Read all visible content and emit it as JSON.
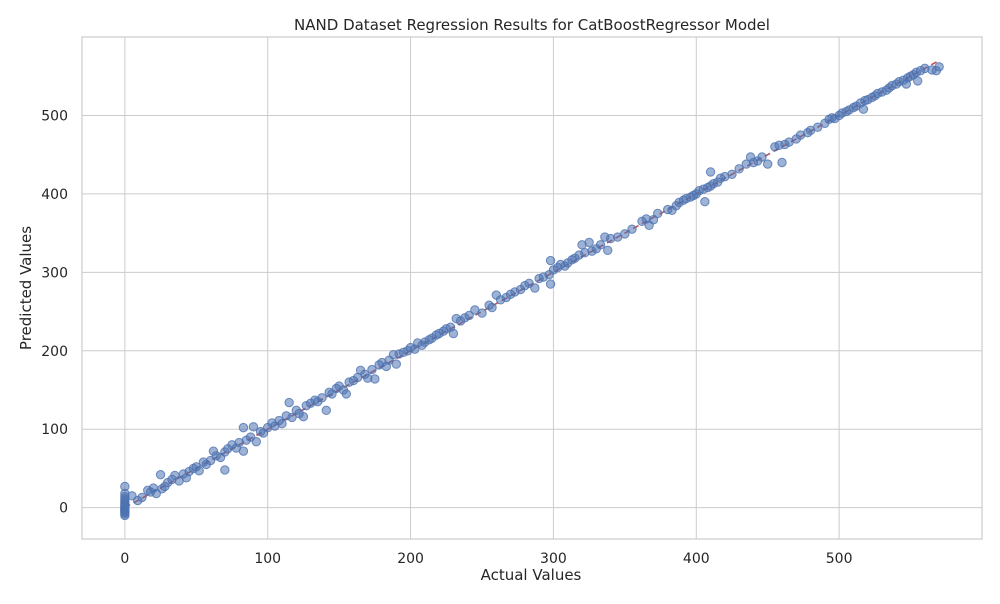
{
  "chart_data": {
    "type": "scatter",
    "title": "NAND Dataset Regression Results for CatBoostRegressor Model",
    "xlabel": "Actual Values",
    "ylabel": "Predicted Values",
    "xlim": [
      -30,
      600
    ],
    "ylim": [
      -40,
      600
    ],
    "xticks": [
      0,
      100,
      200,
      300,
      400,
      500
    ],
    "yticks": [
      0,
      100,
      200,
      300,
      400,
      500
    ],
    "grid": true,
    "legend": "none",
    "colors": {
      "points": "#4c72b0",
      "reference_line": "#c44e52",
      "grid": "#cccccc"
    },
    "reference_line": {
      "from": [
        0,
        0
      ],
      "to": [
        570,
        570
      ],
      "style": "dashed"
    },
    "points": [
      [
        0,
        -10
      ],
      [
        0,
        -8
      ],
      [
        0,
        -6
      ],
      [
        0,
        -5
      ],
      [
        0,
        -3
      ],
      [
        0,
        -2
      ],
      [
        0,
        0
      ],
      [
        0,
        2
      ],
      [
        0,
        4
      ],
      [
        0,
        6
      ],
      [
        0,
        8
      ],
      [
        0,
        11
      ],
      [
        0,
        14
      ],
      [
        0,
        18
      ],
      [
        0,
        27
      ],
      [
        5,
        15
      ],
      [
        9,
        9
      ],
      [
        12,
        13
      ],
      [
        16,
        22
      ],
      [
        18,
        20
      ],
      [
        20,
        25
      ],
      [
        22,
        18
      ],
      [
        25,
        42
      ],
      [
        26,
        24
      ],
      [
        28,
        27
      ],
      [
        30,
        32
      ],
      [
        33,
        36
      ],
      [
        35,
        41
      ],
      [
        38,
        34
      ],
      [
        41,
        43
      ],
      [
        43,
        38
      ],
      [
        45,
        46
      ],
      [
        48,
        50
      ],
      [
        50,
        52
      ],
      [
        52,
        47
      ],
      [
        55,
        58
      ],
      [
        57,
        55
      ],
      [
        60,
        60
      ],
      [
        62,
        72
      ],
      [
        64,
        66
      ],
      [
        67,
        64
      ],
      [
        70,
        71
      ],
      [
        70,
        48
      ],
      [
        72,
        75
      ],
      [
        75,
        80
      ],
      [
        78,
        76
      ],
      [
        80,
        83
      ],
      [
        83,
        102
      ],
      [
        83,
        72
      ],
      [
        85,
        86
      ],
      [
        88,
        90
      ],
      [
        90,
        103
      ],
      [
        92,
        84
      ],
      [
        95,
        97
      ],
      [
        97,
        95
      ],
      [
        100,
        102
      ],
      [
        103,
        108
      ],
      [
        105,
        104
      ],
      [
        108,
        111
      ],
      [
        110,
        107
      ],
      [
        113,
        117
      ],
      [
        115,
        134
      ],
      [
        117,
        115
      ],
      [
        120,
        124
      ],
      [
        122,
        120
      ],
      [
        125,
        116
      ],
      [
        127,
        130
      ],
      [
        130,
        133
      ],
      [
        133,
        137
      ],
      [
        135,
        135
      ],
      [
        138,
        140
      ],
      [
        141,
        124
      ],
      [
        143,
        147
      ],
      [
        145,
        145
      ],
      [
        148,
        152
      ],
      [
        150,
        155
      ],
      [
        153,
        150
      ],
      [
        155,
        145
      ],
      [
        157,
        160
      ],
      [
        160,
        162
      ],
      [
        163,
        166
      ],
      [
        165,
        175
      ],
      [
        168,
        170
      ],
      [
        170,
        165
      ],
      [
        173,
        176
      ],
      [
        175,
        164
      ],
      [
        178,
        182
      ],
      [
        180,
        185
      ],
      [
        183,
        180
      ],
      [
        185,
        188
      ],
      [
        188,
        195
      ],
      [
        190,
        183
      ],
      [
        192,
        196
      ],
      [
        195,
        198
      ],
      [
        198,
        200
      ],
      [
        200,
        204
      ],
      [
        203,
        202
      ],
      [
        205,
        210
      ],
      [
        208,
        207
      ],
      [
        210,
        211
      ],
      [
        213,
        214
      ],
      [
        215,
        216
      ],
      [
        218,
        220
      ],
      [
        220,
        222
      ],
      [
        223,
        225
      ],
      [
        225,
        228
      ],
      [
        228,
        230
      ],
      [
        230,
        222
      ],
      [
        232,
        241
      ],
      [
        235,
        238
      ],
      [
        238,
        242
      ],
      [
        241,
        245
      ],
      [
        245,
        252
      ],
      [
        250,
        248
      ],
      [
        255,
        258
      ],
      [
        257,
        255
      ],
      [
        260,
        271
      ],
      [
        263,
        265
      ],
      [
        267,
        268
      ],
      [
        270,
        272
      ],
      [
        273,
        275
      ],
      [
        277,
        278
      ],
      [
        280,
        283
      ],
      [
        283,
        286
      ],
      [
        287,
        280
      ],
      [
        290,
        292
      ],
      [
        293,
        294
      ],
      [
        297,
        297
      ],
      [
        298,
        315
      ],
      [
        298,
        285
      ],
      [
        300,
        303
      ],
      [
        303,
        306
      ],
      [
        305,
        310
      ],
      [
        308,
        308
      ],
      [
        310,
        312
      ],
      [
        313,
        316
      ],
      [
        315,
        318
      ],
      [
        318,
        322
      ],
      [
        320,
        335
      ],
      [
        322,
        325
      ],
      [
        325,
        338
      ],
      [
        327,
        327
      ],
      [
        330,
        330
      ],
      [
        333,
        335
      ],
      [
        336,
        345
      ],
      [
        338,
        328
      ],
      [
        340,
        343
      ],
      [
        345,
        345
      ],
      [
        350,
        349
      ],
      [
        355,
        355
      ],
      [
        362,
        365
      ],
      [
        365,
        368
      ],
      [
        367,
        360
      ],
      [
        370,
        367
      ],
      [
        373,
        375
      ],
      [
        380,
        380
      ],
      [
        383,
        379
      ],
      [
        386,
        385
      ],
      [
        388,
        389
      ],
      [
        391,
        392
      ],
      [
        393,
        394
      ],
      [
        396,
        396
      ],
      [
        398,
        398
      ],
      [
        400,
        400
      ],
      [
        402,
        404
      ],
      [
        405,
        406
      ],
      [
        406,
        390
      ],
      [
        408,
        408
      ],
      [
        410,
        410
      ],
      [
        410,
        428
      ],
      [
        412,
        413
      ],
      [
        415,
        415
      ],
      [
        417,
        420
      ],
      [
        420,
        422
      ],
      [
        425,
        425
      ],
      [
        430,
        432
      ],
      [
        435,
        438
      ],
      [
        438,
        447
      ],
      [
        440,
        440
      ],
      [
        443,
        442
      ],
      [
        446,
        447
      ],
      [
        450,
        438
      ],
      [
        455,
        460
      ],
      [
        458,
        462
      ],
      [
        460,
        440
      ],
      [
        462,
        463
      ],
      [
        465,
        466
      ],
      [
        470,
        470
      ],
      [
        473,
        475
      ],
      [
        478,
        478
      ],
      [
        480,
        481
      ],
      [
        485,
        485
      ],
      [
        490,
        490
      ],
      [
        493,
        495
      ],
      [
        495,
        497
      ],
      [
        497,
        496
      ],
      [
        500,
        500
      ],
      [
        502,
        503
      ],
      [
        505,
        505
      ],
      [
        507,
        507
      ],
      [
        510,
        510
      ],
      [
        512,
        512
      ],
      [
        515,
        516
      ],
      [
        517,
        508
      ],
      [
        518,
        519
      ],
      [
        520,
        520
      ],
      [
        523,
        523
      ],
      [
        525,
        525
      ],
      [
        527,
        528
      ],
      [
        530,
        530
      ],
      [
        533,
        532
      ],
      [
        535,
        535
      ],
      [
        537,
        538
      ],
      [
        540,
        540
      ],
      [
        542,
        543
      ],
      [
        545,
        545
      ],
      [
        547,
        540
      ],
      [
        548,
        548
      ],
      [
        550,
        550
      ],
      [
        552,
        552
      ],
      [
        554,
        555
      ],
      [
        555,
        544
      ],
      [
        557,
        557
      ],
      [
        560,
        560
      ],
      [
        565,
        558
      ],
      [
        568,
        557
      ],
      [
        570,
        562
      ]
    ]
  }
}
